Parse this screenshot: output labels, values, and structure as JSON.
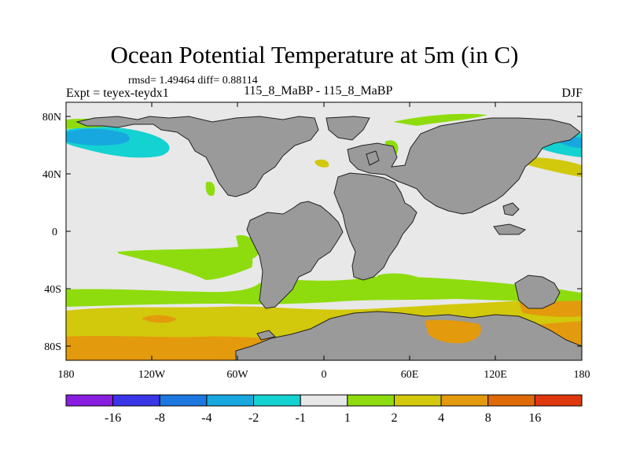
{
  "header": {
    "title": "Ocean Potential Temperature at 5m (in C)",
    "stats": "rmsd= 1.49464 diff= 0.88114",
    "expt": "Expt = teyex-teydx1",
    "subtitle": "115_8_MaBP - 115_8_MaBP",
    "season": "DJF"
  },
  "axes": {
    "x_ticks": [
      "180",
      "120W",
      "60W",
      "0",
      "60E",
      "120E",
      "180"
    ],
    "y_ticks": [
      "80N",
      "40N",
      "0",
      "40S",
      "80S"
    ]
  },
  "colorbar": {
    "labels": [
      "-16",
      "-8",
      "-4",
      "-2",
      "-1",
      "1",
      "2",
      "4",
      "8",
      "16"
    ],
    "colors": [
      "#8a1ee0",
      "#3a35e6",
      "#1c78e0",
      "#18a8e0",
      "#14d2d2",
      "#e8e8e8",
      "#8edc0e",
      "#d2c80c",
      "#e39a0c",
      "#e06a08",
      "#e0380e"
    ]
  },
  "colors": {
    "land": "#9a9a9a",
    "neutral_ocean": "#e8e8e8",
    "green": "#8edc0e",
    "yellow": "#d2c80c",
    "orange": "#e39a0c",
    "cyan": "#14d2d2",
    "lightblue": "#18a8e0"
  }
}
